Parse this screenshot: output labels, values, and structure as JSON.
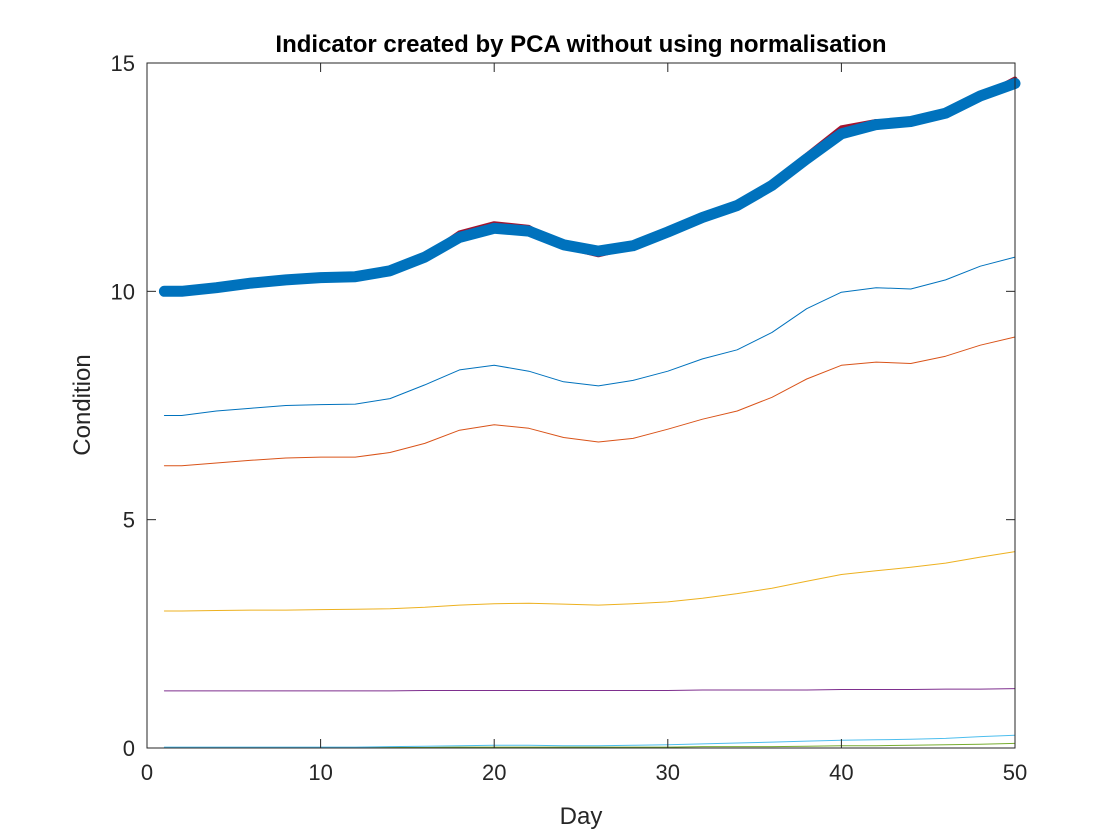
{
  "chart_data": {
    "type": "line",
    "title": "Indicator created by PCA without using normalisation",
    "xlabel": "Day",
    "ylabel": "Condition",
    "xlim": [
      0,
      50
    ],
    "ylim": [
      0,
      15
    ],
    "xticks": [
      0,
      10,
      20,
      30,
      40,
      50
    ],
    "yticks": [
      0,
      5,
      10,
      15
    ],
    "grid": false,
    "legend": "none",
    "x": [
      1,
      2,
      4,
      6,
      8,
      10,
      12,
      14,
      16,
      18,
      20,
      22,
      24,
      26,
      28,
      30,
      32,
      34,
      36,
      38,
      40,
      42,
      44,
      46,
      48,
      50
    ],
    "series": [
      {
        "color": "#0072BD",
        "width": 1,
        "values": [
          7.28,
          7.28,
          7.38,
          7.44,
          7.5,
          7.52,
          7.53,
          7.65,
          7.95,
          8.28,
          8.38,
          8.25,
          8.02,
          7.93,
          8.05,
          8.25,
          8.52,
          8.72,
          9.1,
          9.62,
          9.98,
          10.08,
          10.05,
          10.25,
          10.55,
          10.75
        ]
      },
      {
        "color": "#D95319",
        "width": 1,
        "values": [
          6.18,
          6.18,
          6.24,
          6.3,
          6.35,
          6.37,
          6.37,
          6.47,
          6.67,
          6.96,
          7.08,
          7.0,
          6.8,
          6.7,
          6.78,
          6.98,
          7.2,
          7.38,
          7.68,
          8.08,
          8.38,
          8.45,
          8.42,
          8.58,
          8.82,
          9.0
        ]
      },
      {
        "color": "#EDB120",
        "width": 1,
        "values": [
          3.0,
          3.0,
          3.01,
          3.02,
          3.02,
          3.03,
          3.04,
          3.05,
          3.08,
          3.13,
          3.16,
          3.17,
          3.15,
          3.13,
          3.16,
          3.2,
          3.28,
          3.38,
          3.5,
          3.65,
          3.8,
          3.88,
          3.96,
          4.05,
          4.18,
          4.3
        ]
      },
      {
        "color": "#7E2F8E",
        "width": 1,
        "values": [
          1.25,
          1.25,
          1.25,
          1.25,
          1.25,
          1.25,
          1.25,
          1.25,
          1.26,
          1.26,
          1.26,
          1.26,
          1.26,
          1.26,
          1.26,
          1.26,
          1.27,
          1.27,
          1.27,
          1.27,
          1.28,
          1.28,
          1.28,
          1.29,
          1.29,
          1.3
        ]
      },
      {
        "color": "#77AC30",
        "width": 1,
        "values": [
          0.01,
          0.01,
          0.01,
          0.01,
          0.01,
          0.01,
          0.01,
          0.01,
          0.01,
          0.02,
          0.02,
          0.02,
          0.02,
          0.02,
          0.02,
          0.02,
          0.03,
          0.03,
          0.03,
          0.04,
          0.05,
          0.05,
          0.06,
          0.07,
          0.08,
          0.1
        ]
      },
      {
        "color": "#4DBEEE",
        "width": 1,
        "values": [
          0.02,
          0.02,
          0.02,
          0.02,
          0.02,
          0.02,
          0.02,
          0.03,
          0.04,
          0.05,
          0.06,
          0.06,
          0.05,
          0.05,
          0.06,
          0.07,
          0.09,
          0.11,
          0.13,
          0.15,
          0.17,
          0.18,
          0.19,
          0.21,
          0.25,
          0.28
        ]
      },
      {
        "color": "#A2142F",
        "width": 5,
        "values": [
          9.97,
          9.97,
          10.08,
          10.17,
          10.25,
          10.27,
          10.28,
          10.42,
          10.76,
          11.28,
          11.48,
          11.4,
          10.98,
          10.8,
          10.98,
          11.28,
          11.68,
          11.92,
          12.38,
          12.98,
          13.58,
          13.72,
          13.7,
          13.92,
          14.25,
          14.65
        ]
      },
      {
        "color": "#0072BD",
        "width": 11,
        "values": [
          10.0,
          10.0,
          10.08,
          10.18,
          10.25,
          10.3,
          10.32,
          10.45,
          10.75,
          11.18,
          11.38,
          11.32,
          11.02,
          10.88,
          11.0,
          11.3,
          11.62,
          11.88,
          12.32,
          12.9,
          13.45,
          13.65,
          13.72,
          13.9,
          14.28,
          14.55
        ]
      }
    ]
  }
}
